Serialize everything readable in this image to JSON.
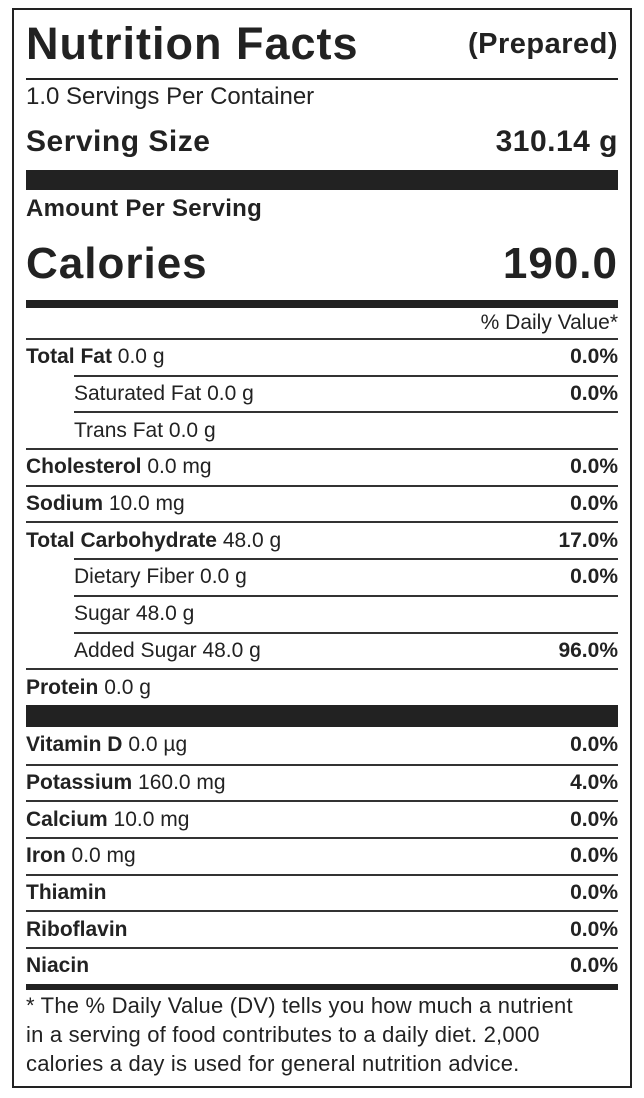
{
  "header": {
    "title": "Nutrition Facts",
    "subtitle": "(Prepared)"
  },
  "servings_per_container": "1.0 Servings Per Container",
  "serving_size": {
    "label": "Serving Size",
    "value": "310.14 g"
  },
  "amount_per_serving": "Amount Per Serving",
  "calories": {
    "label": "Calories",
    "value": "190.0"
  },
  "daily_value_header": "% Daily Value*",
  "nutrients": [
    {
      "name": "Total Fat",
      "amount": "0.0 g",
      "dv": "0.0%"
    },
    {
      "name": "Saturated Fat",
      "amount": "0.0 g",
      "dv": "0.0%"
    },
    {
      "name": "Trans Fat",
      "amount": "0.0 g"
    },
    {
      "name": "Cholesterol",
      "amount": "0.0 mg",
      "dv": "0.0%"
    },
    {
      "name": "Sodium",
      "amount": "10.0 mg",
      "dv": "0.0%"
    },
    {
      "name": "Total Carbohydrate",
      "amount": "48.0 g",
      "dv": "17.0%"
    },
    {
      "name": "Dietary Fiber",
      "amount": "0.0 g",
      "dv": "0.0%"
    },
    {
      "name": "Sugar",
      "amount": "48.0 g"
    },
    {
      "name": "Added Sugar",
      "amount": "48.0 g",
      "dv": "96.0%"
    },
    {
      "name": "Protein",
      "amount": "0.0 g"
    }
  ],
  "vitamins_minerals": [
    {
      "name": "Vitamin D",
      "amount": "0.0 µg",
      "dv": "0.0%"
    },
    {
      "name": "Potassium",
      "amount": "160.0 mg",
      "dv": "4.0%"
    },
    {
      "name": "Calcium",
      "amount": "10.0 mg",
      "dv": "0.0%"
    },
    {
      "name": "Iron",
      "amount": "0.0 mg",
      "dv": "0.0%"
    },
    {
      "name": "Thiamin",
      "dv": "0.0%"
    },
    {
      "name": "Riboflavin",
      "dv": "0.0%"
    },
    {
      "name": "Niacin",
      "dv": "0.0%"
    }
  ],
  "footnote": [
    "* The % Daily Value (DV) tells you how much a nutrient",
    "in a serving of food contributes to a daily diet. 2,000",
    "calories a day is used for general nutrition advice."
  ]
}
